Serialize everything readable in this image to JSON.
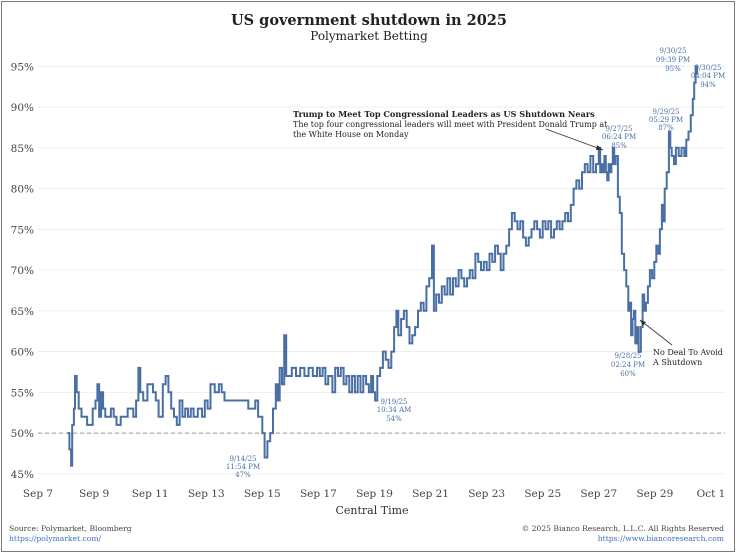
{
  "chart_data": {
    "type": "line",
    "title": "US government shutdown in 2025",
    "subtitle": "Polymarket Betting",
    "xlabel": "Central Time",
    "ylabel": "",
    "ylim": [
      44,
      97
    ],
    "xlim": [
      7.0,
      31.5
    ],
    "yticks": [
      45,
      50,
      55,
      60,
      65,
      70,
      75,
      80,
      85,
      90,
      95
    ],
    "ytick_labels": [
      "45%",
      "50%",
      "55%",
      "60%",
      "65%",
      "70%",
      "75%",
      "80%",
      "85%",
      "90%",
      "95%"
    ],
    "xticks": [
      7,
      9,
      11,
      13,
      15,
      17,
      19,
      21,
      23,
      25,
      27,
      29,
      31
    ],
    "xtick_labels": [
      "Sep 7",
      "Sep 9",
      "Sep 11",
      "Sep 13",
      "Sep 15",
      "Sep 17",
      "Sep 19",
      "Sep 21",
      "Sep 23",
      "Sep 25",
      "Sep 27",
      "Sep 29",
      "Oct 1"
    ],
    "reference_line": 50,
    "series": [
      {
        "name": "Polymarket probability",
        "color": "#4a6fa5",
        "points": [
          [
            8.05,
            50
          ],
          [
            8.12,
            48
          ],
          [
            8.18,
            46
          ],
          [
            8.22,
            51
          ],
          [
            8.28,
            53
          ],
          [
            8.32,
            57
          ],
          [
            8.38,
            55
          ],
          [
            8.45,
            53
          ],
          [
            8.55,
            52
          ],
          [
            8.65,
            52
          ],
          [
            8.75,
            51
          ],
          [
            8.85,
            51
          ],
          [
            8.95,
            53
          ],
          [
            9.05,
            54
          ],
          [
            9.12,
            56
          ],
          [
            9.18,
            52
          ],
          [
            9.25,
            55
          ],
          [
            9.32,
            53
          ],
          [
            9.4,
            52
          ],
          [
            9.5,
            52
          ],
          [
            9.6,
            53
          ],
          [
            9.7,
            52
          ],
          [
            9.8,
            51
          ],
          [
            9.95,
            52
          ],
          [
            10.1,
            52
          ],
          [
            10.2,
            53
          ],
          [
            10.3,
            53
          ],
          [
            10.4,
            52
          ],
          [
            10.5,
            54
          ],
          [
            10.58,
            58
          ],
          [
            10.65,
            55
          ],
          [
            10.75,
            54
          ],
          [
            10.9,
            56
          ],
          [
            11.0,
            56
          ],
          [
            11.1,
            55
          ],
          [
            11.2,
            54
          ],
          [
            11.3,
            52
          ],
          [
            11.45,
            56
          ],
          [
            11.55,
            57
          ],
          [
            11.65,
            55
          ],
          [
            11.75,
            53
          ],
          [
            11.85,
            52
          ],
          [
            11.95,
            51
          ],
          [
            12.05,
            54
          ],
          [
            12.15,
            52
          ],
          [
            12.25,
            53
          ],
          [
            12.35,
            52
          ],
          [
            12.45,
            53
          ],
          [
            12.55,
            52
          ],
          [
            12.7,
            53
          ],
          [
            12.85,
            52
          ],
          [
            12.95,
            54
          ],
          [
            13.05,
            53
          ],
          [
            13.15,
            56
          ],
          [
            13.3,
            55
          ],
          [
            13.45,
            56
          ],
          [
            13.55,
            55
          ],
          [
            13.65,
            54
          ],
          [
            13.75,
            54
          ],
          [
            13.9,
            54
          ],
          [
            14.05,
            54
          ],
          [
            14.2,
            54
          ],
          [
            14.35,
            54
          ],
          [
            14.5,
            53
          ],
          [
            14.65,
            53
          ],
          [
            14.75,
            54
          ],
          [
            14.85,
            52
          ],
          [
            15.0,
            50
          ],
          [
            15.08,
            47
          ],
          [
            15.18,
            49
          ],
          [
            15.28,
            50
          ],
          [
            15.38,
            53
          ],
          [
            15.48,
            56
          ],
          [
            15.55,
            54
          ],
          [
            15.62,
            58
          ],
          [
            15.7,
            56
          ],
          [
            15.78,
            62
          ],
          [
            15.85,
            57
          ],
          [
            15.95,
            57
          ],
          [
            16.05,
            58
          ],
          [
            16.2,
            57
          ],
          [
            16.35,
            58
          ],
          [
            16.5,
            57
          ],
          [
            16.65,
            58
          ],
          [
            16.8,
            57
          ],
          [
            16.95,
            58
          ],
          [
            17.05,
            57
          ],
          [
            17.15,
            58
          ],
          [
            17.25,
            56
          ],
          [
            17.35,
            57
          ],
          [
            17.5,
            55
          ],
          [
            17.6,
            58
          ],
          [
            17.7,
            57
          ],
          [
            17.8,
            58
          ],
          [
            17.9,
            56
          ],
          [
            18.0,
            57
          ],
          [
            18.1,
            55
          ],
          [
            18.2,
            57
          ],
          [
            18.3,
            55
          ],
          [
            18.4,
            57
          ],
          [
            18.5,
            55
          ],
          [
            18.6,
            57
          ],
          [
            18.7,
            56
          ],
          [
            18.8,
            55
          ],
          [
            18.88,
            57
          ],
          [
            18.95,
            55
          ],
          [
            19.02,
            54
          ],
          [
            19.1,
            57
          ],
          [
            19.2,
            58
          ],
          [
            19.3,
            60
          ],
          [
            19.4,
            59
          ],
          [
            19.5,
            58
          ],
          [
            19.6,
            60
          ],
          [
            19.7,
            63
          ],
          [
            19.78,
            65
          ],
          [
            19.85,
            62
          ],
          [
            19.95,
            64
          ],
          [
            20.05,
            65
          ],
          [
            20.15,
            63
          ],
          [
            20.25,
            61
          ],
          [
            20.35,
            62
          ],
          [
            20.45,
            63
          ],
          [
            20.55,
            65
          ],
          [
            20.65,
            66
          ],
          [
            20.75,
            65
          ],
          [
            20.85,
            68
          ],
          [
            20.95,
            69
          ],
          [
            21.05,
            73
          ],
          [
            21.12,
            65
          ],
          [
            21.2,
            67
          ],
          [
            21.3,
            66
          ],
          [
            21.4,
            68
          ],
          [
            21.5,
            67
          ],
          [
            21.6,
            69
          ],
          [
            21.7,
            67
          ],
          [
            21.8,
            69
          ],
          [
            21.9,
            68
          ],
          [
            22.0,
            70
          ],
          [
            22.1,
            69
          ],
          [
            22.2,
            68
          ],
          [
            22.3,
            69
          ],
          [
            22.4,
            70
          ],
          [
            22.5,
            69
          ],
          [
            22.6,
            72
          ],
          [
            22.7,
            71
          ],
          [
            22.8,
            70
          ],
          [
            22.9,
            71
          ],
          [
            23.0,
            70
          ],
          [
            23.1,
            72
          ],
          [
            23.2,
            71
          ],
          [
            23.3,
            73
          ],
          [
            23.4,
            72
          ],
          [
            23.5,
            70
          ],
          [
            23.6,
            72
          ],
          [
            23.7,
            73
          ],
          [
            23.8,
            75
          ],
          [
            23.9,
            77
          ],
          [
            24.0,
            76
          ],
          [
            24.1,
            75
          ],
          [
            24.2,
            76
          ],
          [
            24.3,
            74
          ],
          [
            24.4,
            73
          ],
          [
            24.5,
            74
          ],
          [
            24.6,
            75
          ],
          [
            24.7,
            76
          ],
          [
            24.8,
            75
          ],
          [
            24.9,
            74
          ],
          [
            25.0,
            76
          ],
          [
            25.1,
            75
          ],
          [
            25.2,
            76
          ],
          [
            25.3,
            74
          ],
          [
            25.4,
            75
          ],
          [
            25.5,
            76
          ],
          [
            25.6,
            75
          ],
          [
            25.7,
            76
          ],
          [
            25.8,
            77
          ],
          [
            25.9,
            76
          ],
          [
            26.0,
            78
          ],
          [
            26.1,
            80
          ],
          [
            26.2,
            81
          ],
          [
            26.3,
            80
          ],
          [
            26.4,
            82
          ],
          [
            26.5,
            83
          ],
          [
            26.6,
            82
          ],
          [
            26.7,
            84
          ],
          [
            26.8,
            82
          ],
          [
            26.9,
            83
          ],
          [
            27.0,
            85
          ],
          [
            27.05,
            82
          ],
          [
            27.1,
            83
          ],
          [
            27.15,
            82
          ],
          [
            27.2,
            84
          ],
          [
            27.25,
            82
          ],
          [
            27.3,
            81
          ],
          [
            27.35,
            83
          ],
          [
            27.4,
            82
          ],
          [
            27.45,
            83
          ],
          [
            27.5,
            85
          ],
          [
            27.55,
            83
          ],
          [
            27.6,
            84
          ],
          [
            27.68,
            79
          ],
          [
            27.75,
            77
          ],
          [
            27.82,
            72
          ],
          [
            27.9,
            70
          ],
          [
            27.98,
            68
          ],
          [
            28.05,
            65
          ],
          [
            28.1,
            66
          ],
          [
            28.15,
            62
          ],
          [
            28.2,
            64
          ],
          [
            28.25,
            65
          ],
          [
            28.3,
            61
          ],
          [
            28.35,
            63
          ],
          [
            28.42,
            60
          ],
          [
            28.5,
            63
          ],
          [
            28.56,
            67
          ],
          [
            28.62,
            65
          ],
          [
            28.68,
            66
          ],
          [
            28.75,
            68
          ],
          [
            28.82,
            70
          ],
          [
            28.9,
            69
          ],
          [
            28.98,
            71
          ],
          [
            29.05,
            73
          ],
          [
            29.12,
            72
          ],
          [
            29.18,
            75
          ],
          [
            29.25,
            78
          ],
          [
            29.3,
            76
          ],
          [
            29.35,
            80
          ],
          [
            29.42,
            82
          ],
          [
            29.5,
            87
          ],
          [
            29.55,
            85
          ],
          [
            29.6,
            84
          ],
          [
            29.68,
            83
          ],
          [
            29.75,
            85
          ],
          [
            29.85,
            84
          ],
          [
            29.95,
            85
          ],
          [
            30.05,
            84
          ],
          [
            30.12,
            86
          ],
          [
            30.2,
            87
          ],
          [
            30.28,
            89
          ],
          [
            30.35,
            91
          ],
          [
            30.4,
            93
          ],
          [
            30.45,
            95
          ],
          [
            30.5,
            94
          ]
        ]
      }
    ],
    "annotations": [
      {
        "lines": [
          "9/14/25",
          "11:54 PM",
          "47%"
        ]
      },
      {
        "lines": [
          "9/19/25",
          "10:34 AM",
          "54%"
        ]
      },
      {
        "lines": [
          "9/27/25",
          "06:24 PM",
          "85%"
        ]
      },
      {
        "lines": [
          "9/28/25",
          "02:24 PM",
          "60%"
        ]
      },
      {
        "lines": [
          "9/29/25",
          "05:29 PM",
          "87%"
        ]
      },
      {
        "lines": [
          "9/30/25",
          "09:39 PM",
          "95%"
        ]
      },
      {
        "lines": [
          "9/30/25",
          "04:04 PM",
          "94%"
        ]
      },
      {
        "lines": [
          "No Deal To Avoid",
          "A Shutdown"
        ]
      }
    ],
    "news": {
      "headline": "Trump to Meet Top Congressional Leaders as US Shutdown Nears",
      "body": [
        "The top four congressional leaders will meet with President Donald Trump at",
        "the White House on Monday"
      ]
    }
  },
  "footer": {
    "source": "Source: Polymarket, Bloomberg",
    "source_url": "https://polymarket.com/",
    "copyright": "© 2025 Bianco Research, L.L.C. All Rights Reserved",
    "copyright_url": "https://www.biancoresearch.com"
  }
}
